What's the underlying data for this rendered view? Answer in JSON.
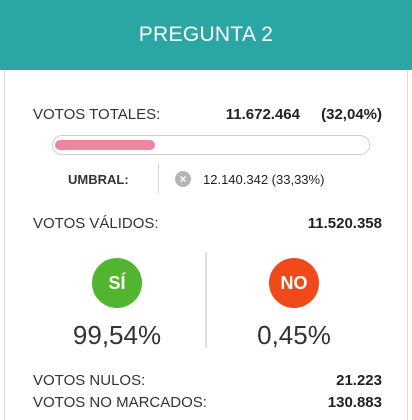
{
  "header": {
    "title": "PREGUNTA 2"
  },
  "totales": {
    "label": "VOTOS TOTALES:",
    "value": "11.672.464",
    "pct": "(32,04%)",
    "progress_fraction": 0.3204
  },
  "umbral": {
    "label": "UMBRAL:",
    "icon": "x-circle-icon",
    "icon_glyph": "×",
    "value": "12.140.342 (33,33%)"
  },
  "validos": {
    "label": "VOTOS VÁLIDOS:",
    "value": "11.520.358"
  },
  "options": {
    "si": {
      "badge": "SÍ",
      "pct": "99,54%",
      "color": "#51b52f"
    },
    "no": {
      "badge": "NO",
      "pct": "0,45%",
      "color": "#f04a1b"
    }
  },
  "nulos": {
    "label": "VOTOS NULOS:",
    "value": "21.223"
  },
  "no_marcados": {
    "label": "VOTOS NO MARCADOS:",
    "value": "130.883"
  },
  "colors": {
    "header_bg": "#2aa6a4",
    "progress_fill": "#f0869e"
  }
}
